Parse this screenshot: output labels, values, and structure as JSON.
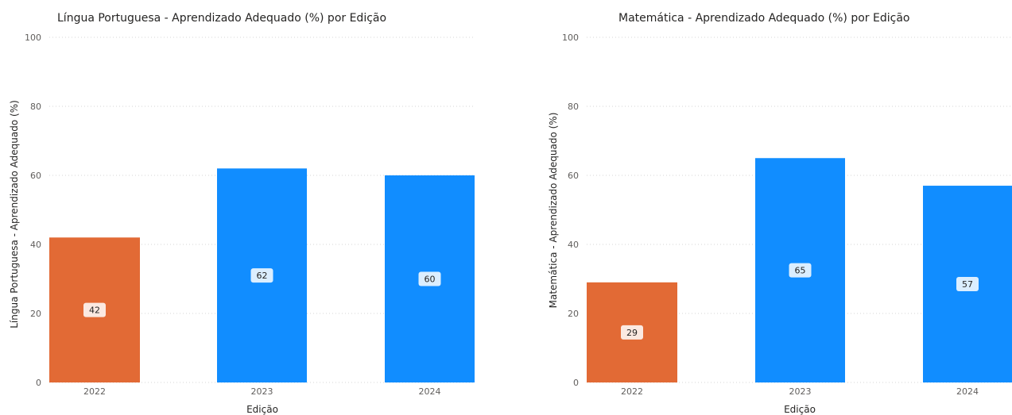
{
  "colors": {
    "highlight": "#E26A35",
    "default": "#118DFF"
  },
  "chart_data": [
    {
      "type": "bar",
      "title": "Língua Portuguesa - Aprendizado Adequado (%) por Edição",
      "xlabel": "Edição",
      "ylabel": "Língua Portuguesa - Aprendizado Adequado (%)",
      "categories": [
        "2022",
        "2023",
        "2024"
      ],
      "values": [
        42,
        62,
        60
      ],
      "data_labels": [
        "42",
        "62",
        "60"
      ],
      "bar_colors": [
        "#E26A35",
        "#118DFF",
        "#118DFF"
      ],
      "ylim": [
        0,
        100
      ],
      "yticks": [
        "0",
        "20",
        "40",
        "60",
        "80",
        "100"
      ],
      "grid": true
    },
    {
      "type": "bar",
      "title": "Matemática - Aprendizado Adequado (%) por Edição",
      "xlabel": "Edição",
      "ylabel": "Matemática - Aprendizado Adequado (%)",
      "categories": [
        "2022",
        "2023",
        "2024"
      ],
      "values": [
        29,
        65,
        57
      ],
      "data_labels": [
        "29",
        "65",
        "57"
      ],
      "bar_colors": [
        "#E26A35",
        "#118DFF",
        "#118DFF"
      ],
      "ylim": [
        0,
        100
      ],
      "yticks": [
        "0",
        "20",
        "40",
        "60",
        "80",
        "100"
      ],
      "grid": true
    }
  ]
}
